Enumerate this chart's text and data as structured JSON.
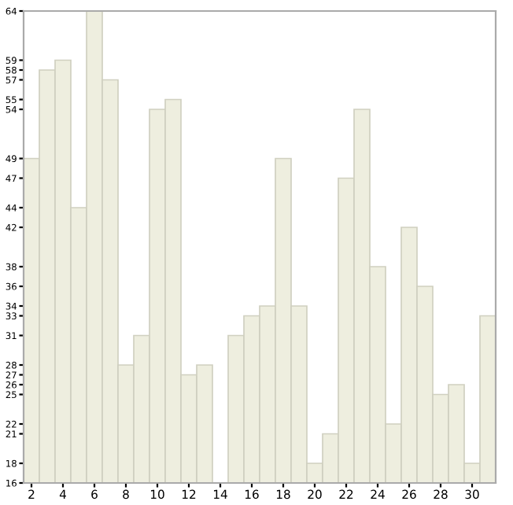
{
  "chart_data": {
    "type": "bar",
    "categories": [
      "2",
      null,
      "4",
      null,
      "6",
      null,
      "8",
      null,
      "10",
      null,
      "12",
      null,
      "14",
      null,
      "16",
      null,
      "18",
      null,
      "20",
      null,
      "22",
      null,
      "24",
      null,
      "26",
      null,
      "28",
      null,
      "30",
      null
    ],
    "values": [
      49,
      58,
      59,
      44,
      64,
      57,
      28,
      31,
      54,
      55,
      27,
      28,
      16,
      31,
      33,
      34,
      49,
      34,
      18,
      21,
      47,
      54,
      38,
      22,
      42,
      36,
      25,
      26,
      18,
      33
    ],
    "color": "#eeeedf",
    "ylim": [
      16,
      64
    ],
    "yticks": [
      16,
      18,
      21,
      22,
      25,
      26,
      27,
      28,
      31,
      33,
      34,
      36,
      38,
      42,
      44,
      47,
      49,
      54,
      55,
      57,
      58,
      59,
      64
    ],
    "grid": false
  }
}
